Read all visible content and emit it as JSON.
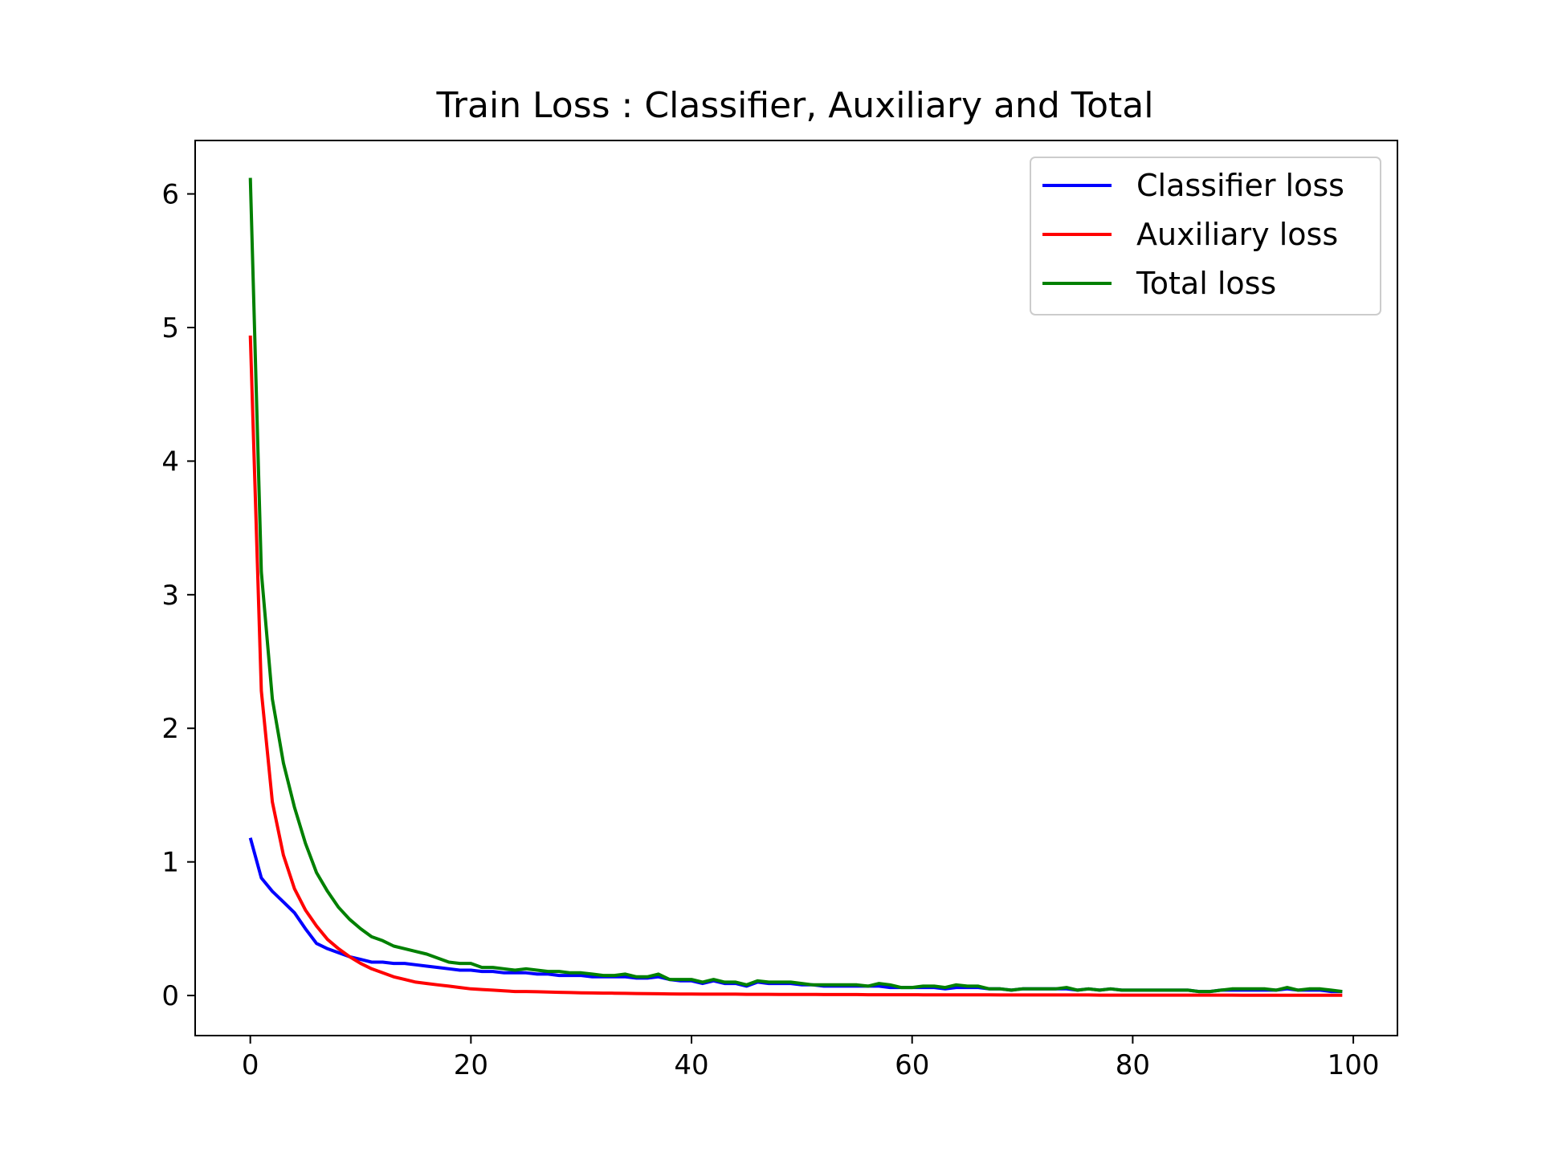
{
  "chart_data": {
    "type": "line",
    "title": "Train Loss : Classifier, Auxiliary and Total",
    "xlabel": "",
    "ylabel": "",
    "xlim": [
      -5,
      104
    ],
    "ylim": [
      -0.3,
      6.4
    ],
    "x_ticks": [
      0,
      20,
      40,
      60,
      80,
      100
    ],
    "y_ticks": [
      0,
      1,
      2,
      3,
      4,
      5,
      6
    ],
    "grid": false,
    "legend_position": "top-right",
    "x": [
      0,
      1,
      2,
      3,
      4,
      5,
      6,
      7,
      8,
      9,
      10,
      11,
      12,
      13,
      14,
      15,
      16,
      17,
      18,
      19,
      20,
      21,
      22,
      23,
      24,
      25,
      26,
      27,
      28,
      29,
      30,
      31,
      32,
      33,
      34,
      35,
      36,
      37,
      38,
      39,
      40,
      41,
      42,
      43,
      44,
      45,
      46,
      47,
      48,
      49,
      50,
      51,
      52,
      53,
      54,
      55,
      56,
      57,
      58,
      59,
      60,
      61,
      62,
      63,
      64,
      65,
      66,
      67,
      68,
      69,
      70,
      71,
      72,
      73,
      74,
      75,
      76,
      77,
      78,
      79,
      80,
      81,
      82,
      83,
      84,
      85,
      86,
      87,
      88,
      89,
      90,
      91,
      92,
      93,
      94,
      95,
      96,
      97,
      98,
      99
    ],
    "series": [
      {
        "name": "Classifier loss",
        "color": "#0000ff",
        "values": [
          1.18,
          0.88,
          0.78,
          0.7,
          0.62,
          0.5,
          0.39,
          0.35,
          0.32,
          0.29,
          0.27,
          0.25,
          0.25,
          0.24,
          0.24,
          0.23,
          0.22,
          0.21,
          0.2,
          0.19,
          0.19,
          0.18,
          0.18,
          0.17,
          0.17,
          0.17,
          0.16,
          0.16,
          0.15,
          0.15,
          0.15,
          0.14,
          0.14,
          0.14,
          0.14,
          0.13,
          0.13,
          0.14,
          0.12,
          0.11,
          0.11,
          0.09,
          0.11,
          0.09,
          0.09,
          0.07,
          0.1,
          0.09,
          0.09,
          0.09,
          0.08,
          0.08,
          0.07,
          0.07,
          0.07,
          0.07,
          0.07,
          0.07,
          0.06,
          0.06,
          0.06,
          0.06,
          0.06,
          0.05,
          0.06,
          0.06,
          0.06,
          0.05,
          0.05,
          0.04,
          0.05,
          0.05,
          0.05,
          0.05,
          0.05,
          0.04,
          0.05,
          0.04,
          0.05,
          0.04,
          0.04,
          0.04,
          0.04,
          0.04,
          0.04,
          0.04,
          0.03,
          0.03,
          0.04,
          0.04,
          0.04,
          0.04,
          0.04,
          0.04,
          0.05,
          0.04,
          0.04,
          0.04,
          0.03,
          0.03
        ]
      },
      {
        "name": "Auxiliary loss",
        "color": "#ff0000",
        "values": [
          4.94,
          2.28,
          1.45,
          1.05,
          0.8,
          0.64,
          0.52,
          0.42,
          0.35,
          0.29,
          0.24,
          0.2,
          0.17,
          0.14,
          0.12,
          0.1,
          0.09,
          0.08,
          0.07,
          0.06,
          0.05,
          0.045,
          0.04,
          0.035,
          0.03,
          0.03,
          0.028,
          0.026,
          0.024,
          0.022,
          0.02,
          0.019,
          0.018,
          0.017,
          0.016,
          0.015,
          0.014,
          0.013,
          0.012,
          0.011,
          0.011,
          0.01,
          0.01,
          0.01,
          0.01,
          0.009,
          0.009,
          0.009,
          0.008,
          0.008,
          0.008,
          0.008,
          0.007,
          0.007,
          0.007,
          0.007,
          0.006,
          0.006,
          0.006,
          0.006,
          0.006,
          0.005,
          0.005,
          0.005,
          0.005,
          0.005,
          0.005,
          0.005,
          0.004,
          0.004,
          0.004,
          0.004,
          0.004,
          0.004,
          0.004,
          0.004,
          0.004,
          0.003,
          0.003,
          0.003,
          0.003,
          0.003,
          0.003,
          0.003,
          0.003,
          0.003,
          0.003,
          0.003,
          0.003,
          0.003,
          0.002,
          0.002,
          0.002,
          0.002,
          0.002,
          0.002,
          0.002,
          0.002,
          0.002,
          0.002
        ]
      },
      {
        "name": "Total loss",
        "color": "#008000",
        "values": [
          6.12,
          3.17,
          2.22,
          1.74,
          1.41,
          1.14,
          0.92,
          0.78,
          0.66,
          0.57,
          0.5,
          0.44,
          0.41,
          0.37,
          0.35,
          0.33,
          0.31,
          0.28,
          0.25,
          0.24,
          0.24,
          0.21,
          0.21,
          0.2,
          0.19,
          0.2,
          0.19,
          0.18,
          0.18,
          0.17,
          0.17,
          0.16,
          0.15,
          0.15,
          0.16,
          0.14,
          0.14,
          0.16,
          0.12,
          0.12,
          0.12,
          0.1,
          0.12,
          0.1,
          0.1,
          0.08,
          0.11,
          0.1,
          0.1,
          0.1,
          0.09,
          0.08,
          0.08,
          0.08,
          0.08,
          0.08,
          0.07,
          0.09,
          0.08,
          0.06,
          0.06,
          0.07,
          0.07,
          0.06,
          0.08,
          0.07,
          0.07,
          0.05,
          0.05,
          0.04,
          0.05,
          0.05,
          0.05,
          0.05,
          0.06,
          0.04,
          0.05,
          0.04,
          0.05,
          0.04,
          0.04,
          0.04,
          0.04,
          0.04,
          0.04,
          0.04,
          0.03,
          0.03,
          0.04,
          0.05,
          0.05,
          0.05,
          0.05,
          0.04,
          0.06,
          0.04,
          0.05,
          0.05,
          0.04,
          0.03
        ]
      }
    ]
  }
}
